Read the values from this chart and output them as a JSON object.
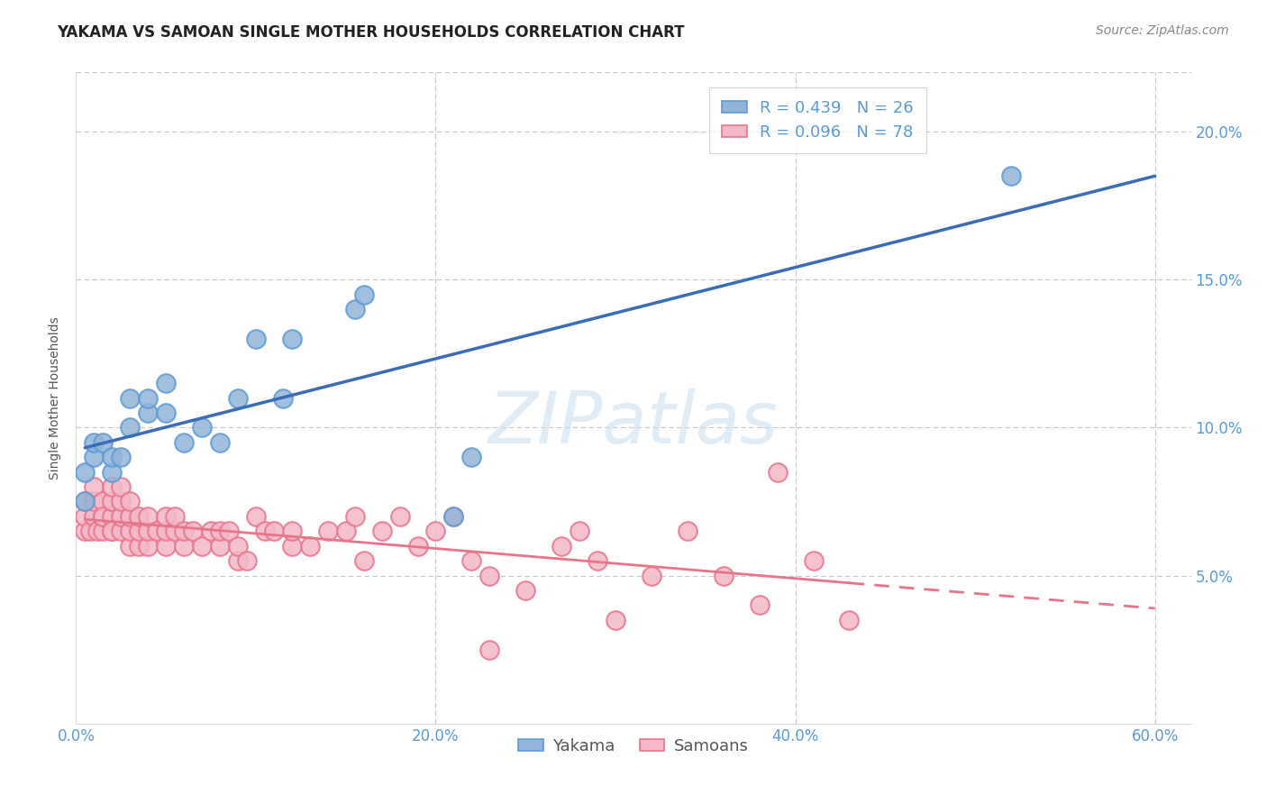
{
  "title": "YAKAMA VS SAMOAN SINGLE MOTHER HOUSEHOLDS CORRELATION CHART",
  "source": "Source: ZipAtlas.com",
  "ylabel": "Single Mother Households",
  "watermark": "ZIPatlas",
  "xlim": [
    0.0,
    0.62
  ],
  "ylim": [
    0.0,
    0.22
  ],
  "xtick_vals": [
    0.0,
    0.2,
    0.4,
    0.6
  ],
  "xtick_labels": [
    "0.0%",
    "20.0%",
    "40.0%",
    "60.0%"
  ],
  "ytick_vals": [
    0.05,
    0.1,
    0.15,
    0.2
  ],
  "ytick_labels": [
    "5.0%",
    "10.0%",
    "15.0%",
    "20.0%"
  ],
  "yakama_color": "#92b4d8",
  "yakama_edge_color": "#5b9bd5",
  "samoan_color": "#f4b8c8",
  "samoan_edge_color": "#e8748a",
  "yakama_line_color": "#3a6db5",
  "samoan_line_color": "#e8748a",
  "tick_color": "#5b9bd5",
  "yakama_R": 0.439,
  "yakama_N": 26,
  "samoan_R": 0.096,
  "samoan_N": 78,
  "yakama_x": [
    0.005,
    0.005,
    0.01,
    0.01,
    0.015,
    0.02,
    0.02,
    0.025,
    0.03,
    0.03,
    0.04,
    0.04,
    0.05,
    0.05,
    0.06,
    0.07,
    0.08,
    0.09,
    0.1,
    0.115,
    0.12,
    0.155,
    0.16,
    0.21,
    0.22,
    0.52
  ],
  "yakama_y": [
    0.085,
    0.075,
    0.09,
    0.095,
    0.095,
    0.085,
    0.09,
    0.09,
    0.11,
    0.1,
    0.105,
    0.11,
    0.105,
    0.115,
    0.095,
    0.1,
    0.095,
    0.11,
    0.13,
    0.11,
    0.13,
    0.14,
    0.145,
    0.07,
    0.09,
    0.185
  ],
  "samoan_x": [
    0.005,
    0.005,
    0.005,
    0.008,
    0.01,
    0.01,
    0.01,
    0.012,
    0.015,
    0.015,
    0.015,
    0.015,
    0.02,
    0.02,
    0.02,
    0.02,
    0.02,
    0.025,
    0.025,
    0.025,
    0.025,
    0.03,
    0.03,
    0.03,
    0.03,
    0.035,
    0.035,
    0.035,
    0.04,
    0.04,
    0.04,
    0.045,
    0.05,
    0.05,
    0.05,
    0.055,
    0.055,
    0.06,
    0.06,
    0.065,
    0.07,
    0.075,
    0.08,
    0.08,
    0.085,
    0.09,
    0.09,
    0.095,
    0.1,
    0.105,
    0.11,
    0.12,
    0.12,
    0.13,
    0.14,
    0.15,
    0.155,
    0.16,
    0.17,
    0.18,
    0.19,
    0.2,
    0.21,
    0.22,
    0.23,
    0.23,
    0.25,
    0.27,
    0.28,
    0.29,
    0.3,
    0.32,
    0.34,
    0.36,
    0.38,
    0.39,
    0.41,
    0.43
  ],
  "samoan_y": [
    0.065,
    0.07,
    0.075,
    0.065,
    0.07,
    0.075,
    0.08,
    0.065,
    0.065,
    0.07,
    0.075,
    0.07,
    0.065,
    0.07,
    0.075,
    0.08,
    0.065,
    0.065,
    0.07,
    0.075,
    0.08,
    0.06,
    0.065,
    0.07,
    0.075,
    0.06,
    0.065,
    0.07,
    0.06,
    0.065,
    0.07,
    0.065,
    0.06,
    0.065,
    0.07,
    0.065,
    0.07,
    0.06,
    0.065,
    0.065,
    0.06,
    0.065,
    0.06,
    0.065,
    0.065,
    0.055,
    0.06,
    0.055,
    0.07,
    0.065,
    0.065,
    0.06,
    0.065,
    0.06,
    0.065,
    0.065,
    0.07,
    0.055,
    0.065,
    0.07,
    0.06,
    0.065,
    0.07,
    0.055,
    0.025,
    0.05,
    0.045,
    0.06,
    0.065,
    0.055,
    0.035,
    0.05,
    0.065,
    0.05,
    0.04,
    0.085,
    0.055,
    0.035
  ],
  "background_color": "#ffffff",
  "grid_color": "#c8c8c8",
  "title_fontsize": 12,
  "axis_label_fontsize": 10,
  "tick_fontsize": 12,
  "legend_fontsize": 13,
  "source_fontsize": 10
}
